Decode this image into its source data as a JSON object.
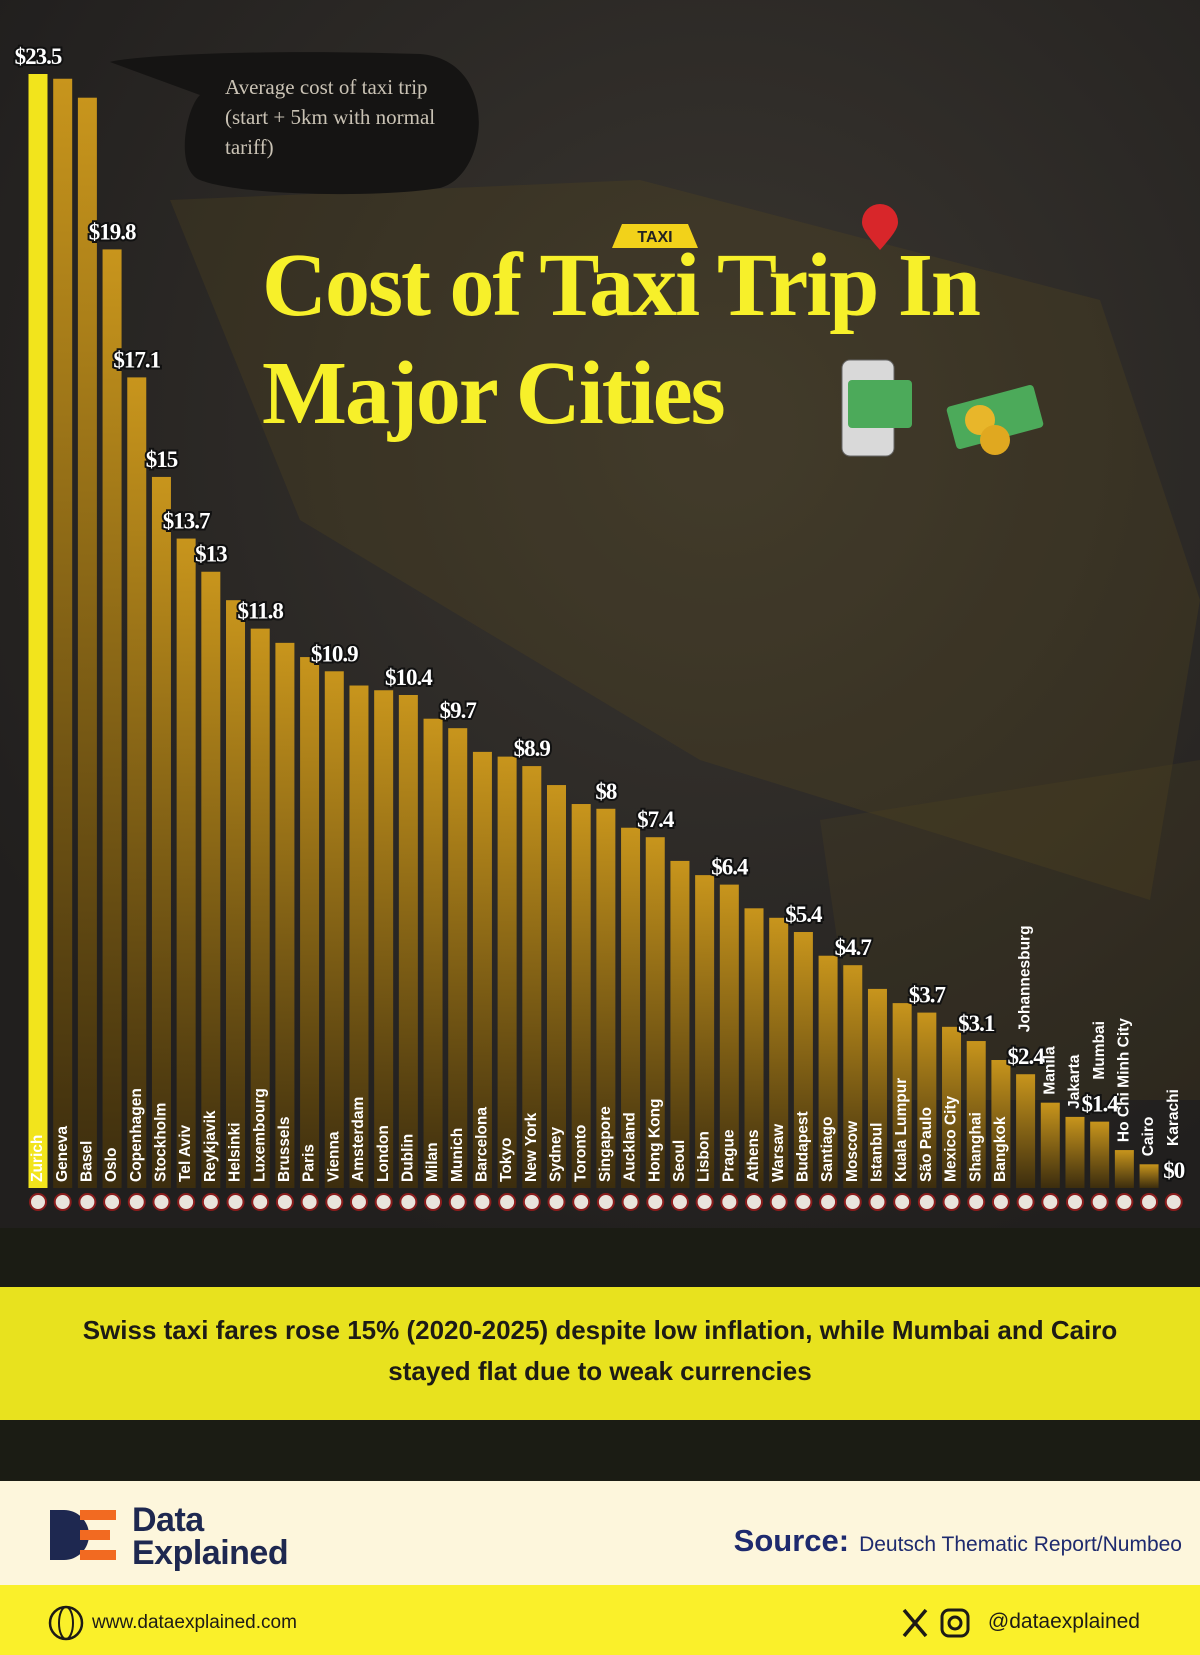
{
  "chart_data": {
    "type": "bar",
    "title": "Cost of Taxi Trip In Major Cities",
    "annotation": "Average cost of taxi trip (start + 5km with normal tariff)",
    "badge": "TAXI",
    "categories": [
      "Zurich",
      "Geneva",
      "Basel",
      "Oslo",
      "Copenhagen",
      "Stockholm",
      "Tel Aviv",
      "Reykjavik",
      "Helsinki",
      "Luxembourg",
      "Brussels",
      "Paris",
      "Vienna",
      "Amsterdam",
      "London",
      "Dublin",
      "Milan",
      "Munich",
      "Barcelona",
      "Tokyo",
      "New York",
      "Sydney",
      "Toronto",
      "Singapore",
      "Auckland",
      "Hong Kong",
      "Seoul",
      "Lisbon",
      "Prague",
      "Athens",
      "Warsaw",
      "Budapest",
      "Santiago",
      "Moscow",
      "Istanbul",
      "Kuala Lumpur",
      "São Paulo",
      "Mexico City",
      "Shanghai",
      "Bangkok",
      "Johannesburg",
      "Manila",
      "Jakarta",
      "Mumbai",
      "Ho Chi Minh City",
      "Cairo",
      "Karachi"
    ],
    "values": [
      23.5,
      23.4,
      23.0,
      19.8,
      17.1,
      15,
      13.7,
      13,
      12.4,
      11.8,
      11.5,
      11.2,
      10.9,
      10.6,
      10.5,
      10.4,
      9.9,
      9.7,
      9.2,
      9.1,
      8.9,
      8.5,
      8.1,
      8,
      7.6,
      7.4,
      6.9,
      6.6,
      6.4,
      5.9,
      5.7,
      5.4,
      4.9,
      4.7,
      4.2,
      3.9,
      3.7,
      3.4,
      3.1,
      2.7,
      2.4,
      1.8,
      1.5,
      1.4,
      0.8,
      0.5,
      0
    ],
    "value_labels": [
      "$23.5",
      null,
      null,
      "$19.8",
      "$17.1",
      "$15",
      "$13.7",
      "$13",
      null,
      "$11.8",
      null,
      null,
      "$10.9",
      null,
      null,
      "$10.4",
      null,
      "$9.7",
      null,
      null,
      "$8.9",
      null,
      null,
      "$8",
      null,
      "$7.4",
      null,
      null,
      "$6.4",
      null,
      null,
      "$5.4",
      null,
      "$4.7",
      null,
      null,
      "$3.7",
      null,
      "$3.1",
      null,
      "$2.4",
      null,
      null,
      "$1.4",
      null,
      null,
      "$0"
    ],
    "color": "#c8951c",
    "highlight": "Zurich",
    "highlight_color": "#f2e41c"
  },
  "insight": "Swiss taxi fares rose 15% (2020-2025) despite low inflation, while Mumbai and Cairo stayed flat due to weak currencies",
  "footer": {
    "brand": "Data Explained",
    "source_label": "Source:",
    "source": "Deutsch Thematic Report/Numbeo",
    "website": "www.dataexplained.com",
    "handle": "@dataexplained"
  }
}
